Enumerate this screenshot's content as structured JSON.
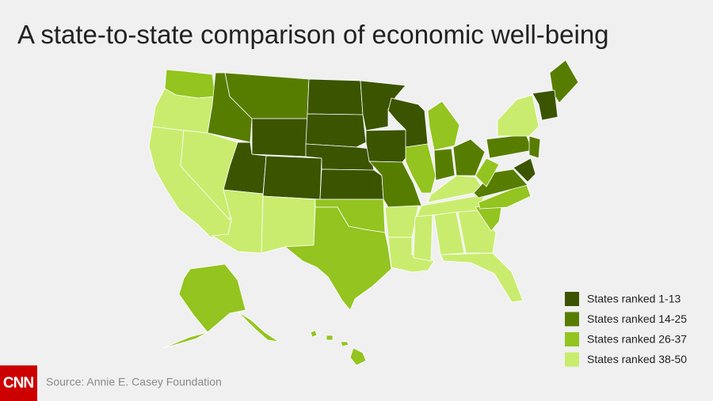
{
  "title": "A state-to-state comparison of economic well-being",
  "legend": [
    {
      "label": "States ranked 1-13",
      "color": "#3b5400"
    },
    {
      "label": "States ranked 14-25",
      "color": "#577d00"
    },
    {
      "label": "States ranked 26-37",
      "color": "#93c41f"
    },
    {
      "label": "States ranked 38-50",
      "color": "#c9ec6e"
    }
  ],
  "source": "Source: Annie E. Casey Foundation",
  "logo": "CNN"
}
